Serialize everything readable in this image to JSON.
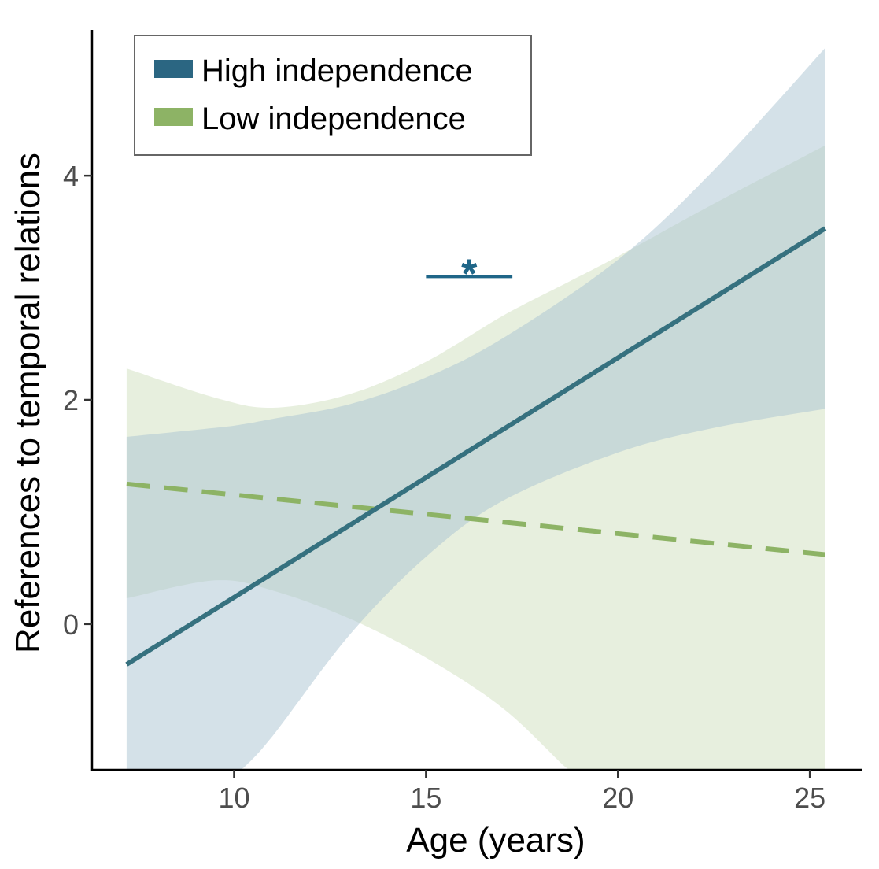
{
  "chart_data": {
    "type": "line",
    "xlabel": "Age (years)",
    "ylabel": "References to temporal relations",
    "xlim": [
      6.3,
      26.35
    ],
    "ylim": [
      -1.3,
      5.3
    ],
    "xticks": [
      10,
      15,
      20,
      25
    ],
    "yticks": [
      0,
      2,
      4
    ],
    "grid": false,
    "legend_position": "top-left",
    "series": [
      {
        "name": "High independence",
        "color": "#2b6682",
        "band_color": "#a9c3d1",
        "line_style": "solid",
        "x": [
          7.2,
          25.4
        ],
        "y": [
          -0.36,
          3.53
        ],
        "band": {
          "x": [
            7.2,
            9.5,
            10.2,
            11,
            13,
            15,
            17,
            20,
            22.5,
            25.4
          ],
          "upper": [
            1.67,
            1.75,
            1.78,
            1.83,
            1.96,
            2.2,
            2.55,
            3.25,
            4.05,
            5.14
          ],
          "lower": [
            -2.4,
            -1.55,
            -1.3,
            -1.0,
            -0.1,
            0.6,
            1.1,
            1.53,
            1.75,
            1.92
          ]
        }
      },
      {
        "name": "Low independence",
        "color": "#8db365",
        "band_color": "#cfe0bd",
        "line_style": "dashed",
        "x": [
          7.2,
          25.4
        ],
        "y": [
          1.25,
          0.62
        ],
        "band": {
          "x": [
            7.2,
            9.5,
            11,
            13,
            15,
            17,
            18.7,
            20,
            22.5,
            25.4
          ],
          "upper": [
            2.28,
            2.02,
            1.93,
            2.05,
            2.34,
            2.75,
            3.05,
            3.28,
            3.75,
            4.27
          ],
          "lower": [
            0.23,
            0.39,
            0.3,
            0.05,
            -0.3,
            -0.75,
            -1.3,
            -1.7,
            -2.3,
            -3.0
          ]
        }
      }
    ],
    "annotations": [
      {
        "text": "*",
        "x_start": 15,
        "x_end": 17.25,
        "y": 3.1,
        "color": "#1f6688"
      }
    ]
  }
}
